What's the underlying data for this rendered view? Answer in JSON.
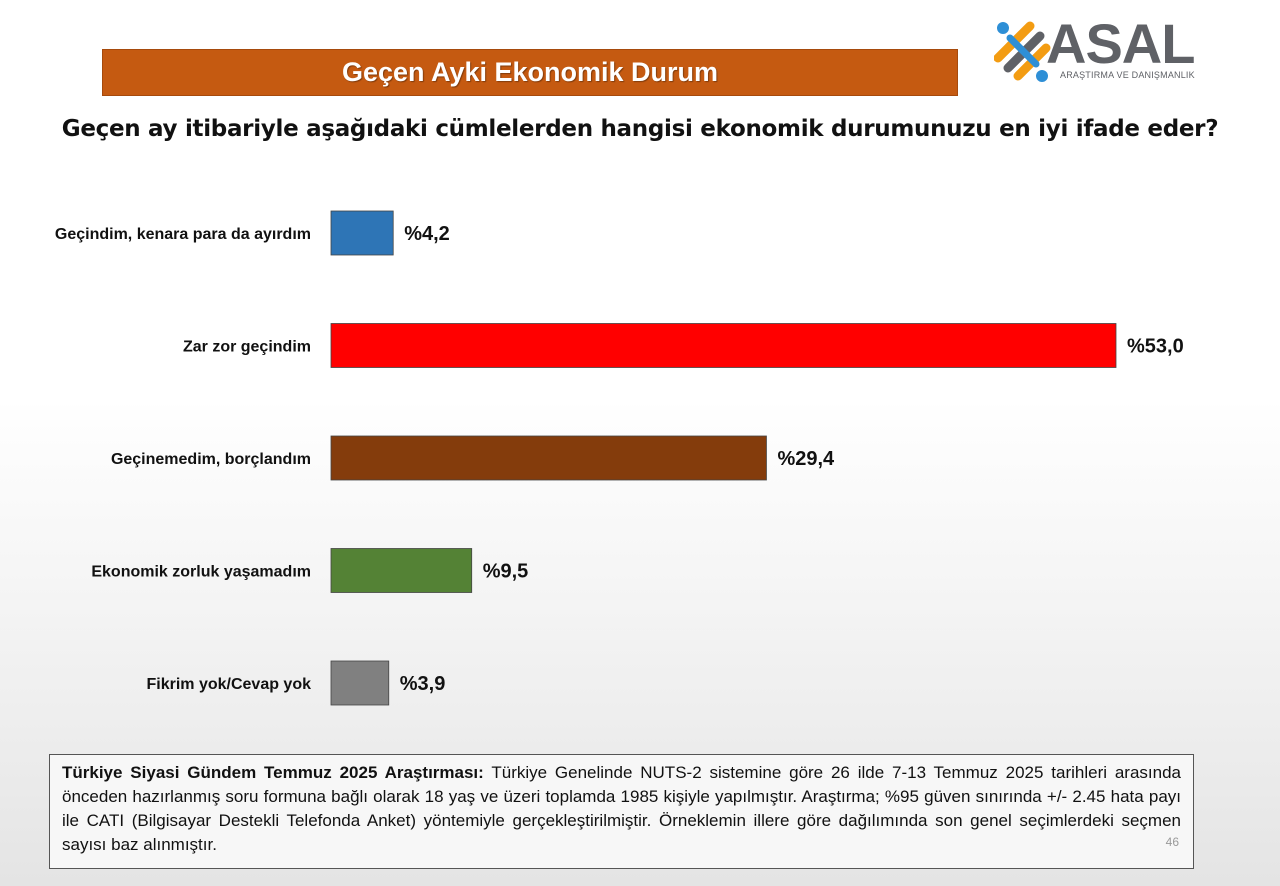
{
  "title": "Geçen Ayki Ekonomik Durum",
  "question": "Geçen ay itibariyle aşağıdaki cümlelerden hangisi ekonomik durumunuzu en iyi ifade eder?",
  "logo": {
    "name": "ASAL",
    "subtitle": "ARAŞTIRMA VE DANIŞMANLIK"
  },
  "chart_data": {
    "type": "bar",
    "orientation": "horizontal",
    "categories": [
      "Geçindim, kenara para da ayırdım",
      "Zar zor geçindim",
      "Geçinemedim, borçlandım",
      "Ekonomik zorluk yaşamadım",
      "Fikrim yok/Cevap yok"
    ],
    "values": [
      4.2,
      53.0,
      29.4,
      9.5,
      3.9
    ],
    "value_labels": [
      "%4,2",
      "%53,0",
      "%29,4",
      "%9,5",
      "%3,9"
    ],
    "colors": [
      "#2e75b6",
      "#ff0000",
      "#843c0c",
      "#548235",
      "#808080"
    ],
    "xlim": [
      0,
      53
    ],
    "grid": false,
    "legend": "none"
  },
  "note": {
    "bold": "Türkiye Siyasi Gündem Temmuz 2025 Araştırması:",
    "text": " Türkiye Genelinde NUTS-2 sistemine göre 26 ilde 7-13 Temmuz 2025 tarihleri arasında önceden hazırlanmış soru formuna bağlı olarak 18 yaş ve üzeri toplamda 1985 kişiyle yapılmıştır. Araştırma; %95 güven sınırında +/- 2.45 hata payı ile CATI (Bilgisayar Destekli Telefonda Anket) yöntemiyle gerçekleştirilmiştir. Örneklemin illere göre dağılımında son genel seçimlerdeki seçmen sayısı baz alınmıştır.",
    "page": "46"
  }
}
